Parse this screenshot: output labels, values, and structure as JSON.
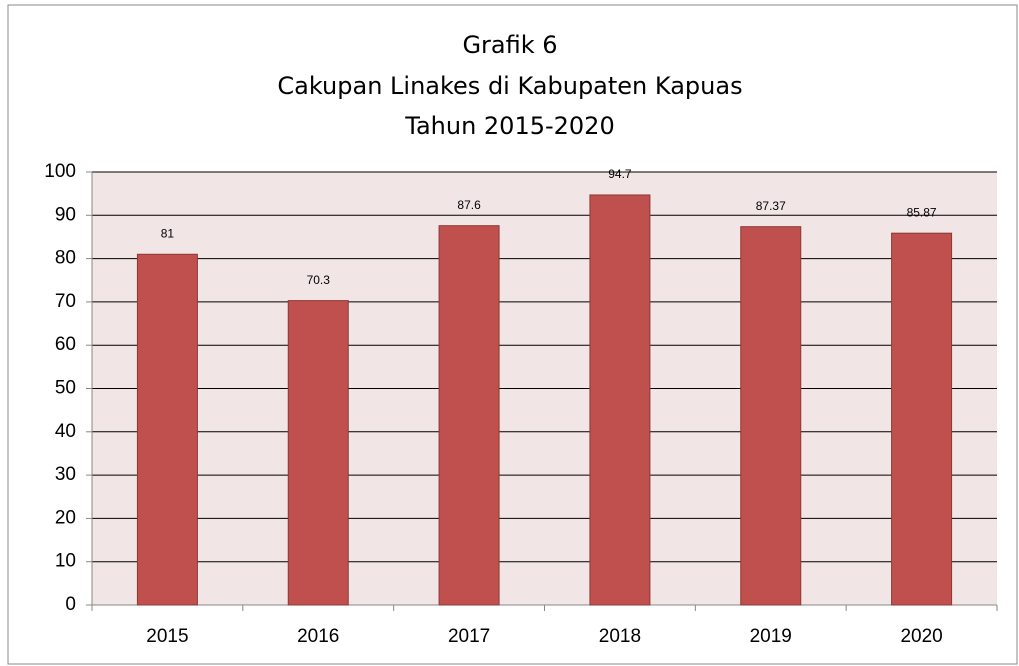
{
  "chart_data": {
    "type": "bar",
    "title": [
      "Grafik 6",
      "Cakupan Linakes di Kabupaten Kapuas",
      "Tahun  2015-2020"
    ],
    "categories": [
      "2015",
      "2016",
      "2017",
      "2018",
      "2019",
      "2020"
    ],
    "values": [
      81,
      70.3,
      87.6,
      94.7,
      87.37,
      85.87
    ],
    "color": "#c0504d",
    "ylim": [
      0,
      100
    ],
    "yticks": [
      0,
      10,
      20,
      30,
      40,
      50,
      60,
      70,
      80,
      90,
      100
    ],
    "grid": true
  }
}
